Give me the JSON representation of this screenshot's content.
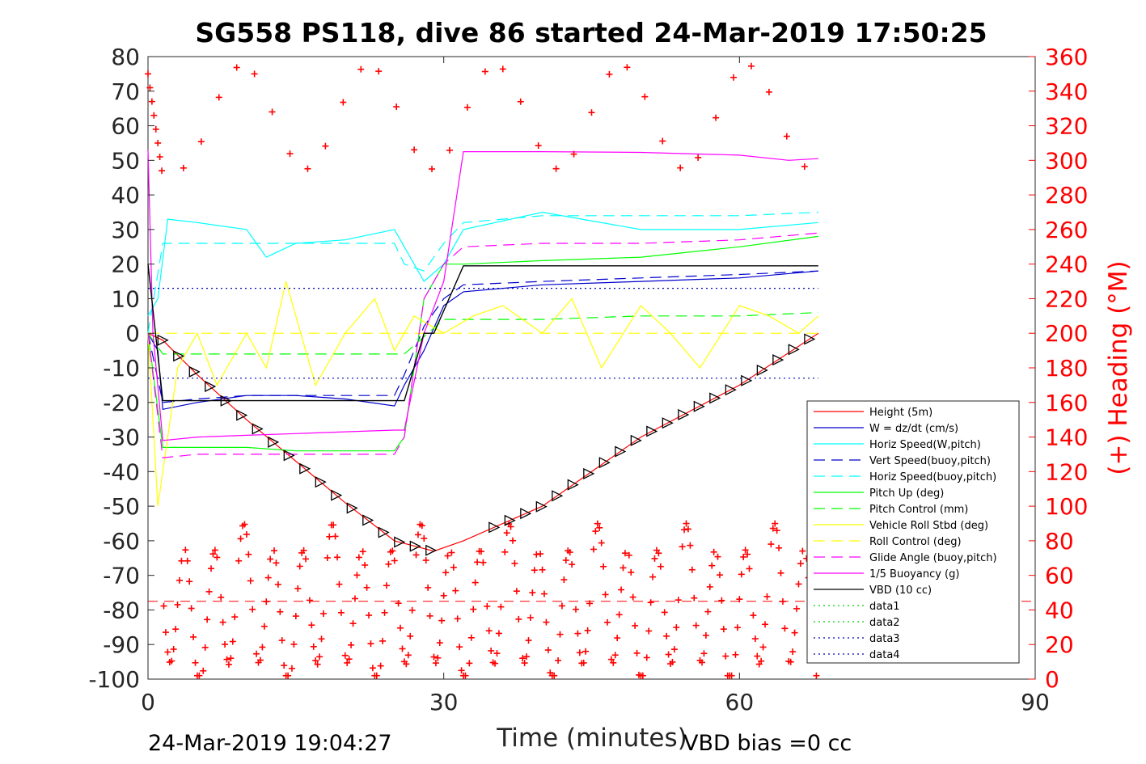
{
  "chart_data": {
    "type": "line",
    "title": "SG558 PS118, dive 86 started 24-Mar-2019 17:50:25",
    "xlabel": "Time (minutes)",
    "ylabel_right": "(+) Heading (°M)",
    "xlim": [
      0,
      90
    ],
    "ylim_left": [
      -100,
      80
    ],
    "ylim_right": [
      0,
      360
    ],
    "x_ticks": [
      "0",
      "30",
      "60",
      "90"
    ],
    "y_ticks_left": [
      "80",
      "70",
      "60",
      "50",
      "40",
      "30",
      "20",
      "10",
      "0",
      "-10",
      "-20",
      "-30",
      "-40",
      "-50",
      "-60",
      "-70",
      "-80",
      "-90",
      "-100"
    ],
    "y_ticks_right": [
      "360",
      "340",
      "320",
      "300",
      "280",
      "260",
      "240",
      "220",
      "200",
      "180",
      "160",
      "140",
      "120",
      "100",
      "80",
      "60",
      "40",
      "20",
      "0"
    ],
    "legend_position": "lower-right",
    "series": [
      {
        "name": "Height (5m)",
        "color": "#ff0000",
        "style": "solid",
        "x": [
          0,
          1.5,
          5,
          10,
          15,
          20,
          25,
          29,
          32,
          40,
          50,
          60,
          68
        ],
        "y": [
          0,
          -2,
          -12,
          -25,
          -37,
          -49,
          -60,
          -63,
          -60,
          -50,
          -30,
          -15,
          0
        ]
      },
      {
        "name": "W = dz/dt (cm/s)",
        "color": "#0000cc",
        "style": "solid",
        "x": [
          0,
          1,
          1.5,
          5,
          10,
          15,
          20,
          25,
          26,
          28,
          30,
          32,
          40,
          50,
          60,
          68
        ],
        "y": [
          0,
          -5,
          -22,
          -20,
          -18,
          -18,
          -19,
          -21,
          -15,
          -5,
          8,
          12,
          14,
          15,
          16,
          18
        ]
      },
      {
        "name": "Horiz Speed(W,pitch)",
        "color": "#00ffff",
        "style": "solid",
        "x": [
          0,
          1,
          2,
          5,
          10,
          12,
          15,
          20,
          25,
          26,
          28,
          30,
          32,
          40,
          50,
          60,
          68
        ],
        "y": [
          5,
          10,
          33,
          32,
          30,
          22,
          26,
          27,
          30,
          25,
          15,
          20,
          30,
          35,
          30,
          30,
          32
        ]
      },
      {
        "name": "Vert Speed(buoy,pitch)",
        "color": "#0000cc",
        "style": "dashed",
        "x": [
          0,
          1.5,
          5,
          10,
          15,
          20,
          25,
          26,
          28,
          30,
          32,
          40,
          50,
          60,
          68
        ],
        "y": [
          0,
          -20,
          -19,
          -18,
          -18,
          -18,
          -18,
          -12,
          2,
          10,
          14,
          15,
          16,
          17,
          18
        ]
      },
      {
        "name": "Horiz Speed(buoy,pitch)",
        "color": "#00ffff",
        "style": "dashed",
        "x": [
          0,
          1.5,
          5,
          10,
          15,
          20,
          25,
          26,
          28,
          30,
          32,
          40,
          50,
          60,
          68
        ],
        "y": [
          0,
          26,
          26,
          26,
          26,
          26,
          26,
          20,
          18,
          26,
          32,
          34,
          34,
          34,
          35
        ]
      },
      {
        "name": "Pitch Up (deg)",
        "color": "#00ff00",
        "style": "solid",
        "x": [
          0,
          1.5,
          5,
          10,
          15,
          20,
          25,
          26,
          28,
          30,
          32,
          40,
          50,
          60,
          68
        ],
        "y": [
          0,
          -33,
          -33,
          -33,
          -34,
          -34,
          -34,
          -30,
          10,
          20,
          20,
          21,
          22,
          25,
          28
        ]
      },
      {
        "name": "Pitch Control (mm)",
        "color": "#00ff00",
        "style": "dashed",
        "x": [
          0,
          1.5,
          5,
          10,
          15,
          20,
          25,
          26,
          28,
          30,
          40,
          50,
          60,
          68
        ],
        "y": [
          0,
          -6,
          -6,
          -6,
          -6,
          -6,
          -6,
          -6,
          -1,
          4,
          4,
          5,
          5,
          6
        ]
      },
      {
        "name": "Vehicle Roll Stbd (deg)",
        "color": "#ffff00",
        "style": "solid",
        "x": [
          0,
          1,
          3,
          5,
          7,
          10,
          12,
          14,
          17,
          20,
          23,
          25,
          27,
          30,
          33,
          36,
          40,
          43,
          46,
          50,
          53,
          56,
          60,
          63,
          66,
          68
        ],
        "y": [
          0,
          -50,
          -10,
          0,
          -15,
          0,
          -10,
          15,
          -15,
          0,
          10,
          -5,
          5,
          0,
          5,
          8,
          0,
          10,
          -10,
          8,
          0,
          -10,
          8,
          5,
          0,
          5
        ]
      },
      {
        "name": "Roll Control (deg)",
        "color": "#ffff00",
        "style": "dashed",
        "x": [
          0,
          68
        ],
        "y": [
          0,
          0
        ]
      },
      {
        "name": "Glide Angle (buoy,pitch)",
        "color": "#ff00ff",
        "style": "dashed",
        "x": [
          0,
          1.5,
          5,
          10,
          15,
          20,
          25,
          26,
          28,
          30,
          32,
          40,
          50,
          60,
          68
        ],
        "y": [
          0,
          -36,
          -35,
          -35,
          -35,
          -35,
          -35,
          -30,
          10,
          20,
          25,
          26,
          26,
          27,
          29
        ]
      },
      {
        "name": "1/5 Buoyancy (g)",
        "color": "#ff00ff",
        "style": "solid",
        "x": [
          0,
          0.5,
          1.5,
          5,
          10,
          15,
          20,
          25,
          26,
          28,
          30,
          32,
          40,
          50,
          60,
          65,
          68
        ],
        "y": [
          53,
          0,
          -31,
          -30,
          -29.5,
          -29,
          -28.5,
          -28,
          -28,
          0,
          15,
          52.5,
          52.5,
          52.3,
          51.5,
          50,
          50.5
        ]
      },
      {
        "name": "VBD (10 cc)",
        "color": "#000000",
        "style": "solid",
        "x": [
          0,
          1.5,
          26,
          28,
          29,
          32,
          68
        ],
        "y": [
          20,
          -19.5,
          -19.5,
          0,
          0,
          19.5,
          19.5
        ]
      },
      {
        "name": "data1",
        "color": "#00cc00",
        "style": "dotted",
        "x": [],
        "y": []
      },
      {
        "name": "data2",
        "color": "#00cc00",
        "style": "dotted",
        "x": [],
        "y": []
      },
      {
        "name": "data3",
        "color": "#0000aa",
        "style": "dotted",
        "x": [
          0,
          68
        ],
        "y": [
          13,
          13
        ]
      },
      {
        "name": "data4",
        "color": "#0000aa",
        "style": "dotted",
        "x": [
          0,
          68
        ],
        "y": [
          -13,
          -13
        ]
      }
    ],
    "heading_marker": "+",
    "heading_color": "#ff0000",
    "heading_reference_level": -77.5,
    "depth_marker": "triangle",
    "vbd_bias_value": "0 cc"
  },
  "footer": {
    "timestamp": "24-Mar-2019 19:04:27",
    "vbd_bias": "VBD bias =0 cc"
  },
  "colors": {
    "heading_axis": "#ff0000",
    "axis": "#262626"
  }
}
